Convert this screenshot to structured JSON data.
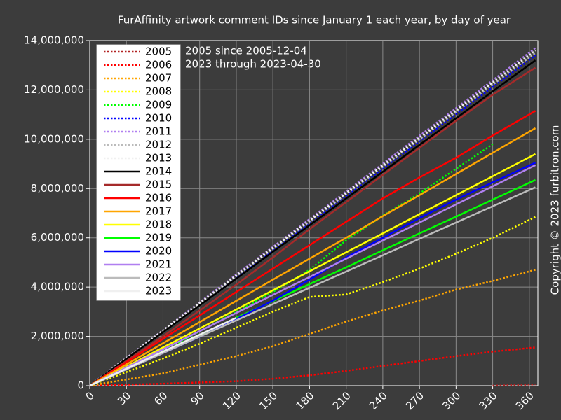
{
  "chart_data": {
    "type": "line",
    "title": "FurAffinity artwork comment IDs since January 1 each year, by day of year",
    "annotations": [
      "2005 since 2005-12-04",
      "2023 through 2023-04-30"
    ],
    "copyright": "Copyright © 2023 furbitron.com",
    "x": [
      0,
      30,
      60,
      90,
      120,
      150,
      180,
      210,
      240,
      270,
      300,
      330,
      365
    ],
    "xlim": [
      0,
      367
    ],
    "xticks": [
      0,
      30,
      60,
      90,
      120,
      150,
      180,
      210,
      240,
      270,
      300,
      330,
      360
    ],
    "ylim": [
      0,
      14000000
    ],
    "yticks": [
      0,
      {
        "value": 2000000,
        "label": "2,000,000"
      },
      {
        "value": 4000000,
        "label": "4,000,000"
      },
      {
        "value": 6000000,
        "label": "6,000,000"
      },
      {
        "value": 8000000,
        "label": "8,000,000"
      },
      {
        "value": 10000000,
        "label": "10,000,000"
      },
      {
        "value": 12000000,
        "label": "12,000,000"
      },
      {
        "value": 14000000,
        "label": "14,000,000"
      }
    ],
    "grid": true,
    "legend": "upper left",
    "series": [
      {
        "name": "2005",
        "color": "#b22222",
        "style": "dotted",
        "values": [
          null,
          null,
          null,
          null,
          null,
          null,
          null,
          null,
          null,
          null,
          null,
          0,
          50000
        ]
      },
      {
        "name": "2006",
        "color": "#ff0000",
        "style": "dotted",
        "values": [
          0,
          40000,
          80000,
          130000,
          180000,
          280000,
          420000,
          600000,
          800000,
          1000000,
          1200000,
          1380000,
          1550000
        ]
      },
      {
        "name": "2007",
        "color": "#ffa500",
        "style": "dotted",
        "values": [
          0,
          250000,
          500000,
          850000,
          1200000,
          1600000,
          2100000,
          2600000,
          3050000,
          3450000,
          3900000,
          4250000,
          4700000
        ]
      },
      {
        "name": "2008",
        "color": "#ffff00",
        "style": "dotted",
        "values": [
          0,
          550000,
          1100000,
          1700000,
          2350000,
          3000000,
          3600000,
          3700000,
          4200000,
          4750000,
          5350000,
          6000000,
          6850000
        ]
      },
      {
        "name": "2009",
        "color": "#00ff00",
        "style": "dotted",
        "values": [
          0,
          700000,
          1400000,
          2200000,
          3000000,
          3800000,
          4700000,
          5900000,
          6900000,
          7800000,
          8800000,
          9800000,
          null
        ]
      },
      {
        "name": "2010",
        "color": "#0000ff",
        "style": "dotted",
        "values": [
          0,
          1100000,
          2200000,
          3310000,
          4410000,
          5510000,
          6610000,
          7710000,
          8810000,
          9920000,
          11020000,
          12120000,
          13400000
        ]
      },
      {
        "name": "2011",
        "color": "#b07ff0",
        "style": "dotted",
        "values": [
          0,
          1130000,
          2250000,
          3380000,
          4510000,
          5630000,
          6760000,
          7880000,
          9010000,
          10140000,
          11260000,
          12390000,
          13700000
        ]
      },
      {
        "name": "2012",
        "color": "#bbbbbb",
        "style": "dotted",
        "values": [
          0,
          1110000,
          2220000,
          3330000,
          4440000,
          5550000,
          6660000,
          7770000,
          8880000,
          9990000,
          11100000,
          12210000,
          13500000
        ]
      },
      {
        "name": "2013",
        "color": "#f0f0f0",
        "style": "dotted",
        "values": [
          0,
          1120000,
          2240000,
          3350000,
          4470000,
          5590000,
          6710000,
          7820000,
          8940000,
          10060000,
          11180000,
          12300000,
          13600000
        ]
      },
      {
        "name": "2014",
        "color": "#000000",
        "style": "solid",
        "values": [
          0,
          1090000,
          2170000,
          3260000,
          4340000,
          5430000,
          6510000,
          7600000,
          8680000,
          9770000,
          10850000,
          11940000,
          13200000
        ]
      },
      {
        "name": "2015",
        "color": "#a52a2a",
        "style": "solid",
        "values": [
          0,
          1000000,
          2000000,
          3050000,
          4100000,
          5200000,
          6350000,
          7450000,
          8550000,
          9650000,
          10750000,
          11800000,
          12900000
        ]
      },
      {
        "name": "2016",
        "color": "#ff0000",
        "style": "solid",
        "values": [
          0,
          950000,
          1900000,
          2850000,
          3800000,
          4750000,
          5700000,
          6650000,
          7600000,
          8450000,
          9250000,
          10150000,
          11150000
        ]
      },
      {
        "name": "2017",
        "color": "#ffa500",
        "style": "solid",
        "values": [
          0,
          860000,
          1720000,
          2580000,
          3440000,
          4300000,
          5150000,
          6000000,
          6880000,
          7730000,
          8590000,
          9450000,
          10450000
        ]
      },
      {
        "name": "2018",
        "color": "#ffff00",
        "style": "solid",
        "values": [
          0,
          770000,
          1550000,
          2320000,
          3090000,
          3870000,
          4640000,
          5410000,
          6180000,
          6960000,
          7730000,
          8500000,
          9400000
        ]
      },
      {
        "name": "2019",
        "color": "#00ff00",
        "style": "solid",
        "values": [
          0,
          690000,
          1370000,
          2060000,
          2750000,
          3430000,
          4120000,
          4800000,
          5490000,
          6180000,
          6860000,
          7550000,
          8350000
        ]
      },
      {
        "name": "2020",
        "color": "#0000ff",
        "style": "solid",
        "values": [
          0,
          660000,
          1320000,
          1980000,
          2700000,
          3450000,
          4300000,
          5200000,
          6000000,
          6800000,
          7550000,
          8250000,
          9050000
        ]
      },
      {
        "name": "2021",
        "color": "#b07ff0",
        "style": "solid",
        "values": [
          0,
          740000,
          1470000,
          2210000,
          2950000,
          3680000,
          4410000,
          5150000,
          5890000,
          6620000,
          7360000,
          8090000,
          8950000
        ]
      },
      {
        "name": "2022",
        "color": "#bbbbbb",
        "style": "solid",
        "values": [
          0,
          660000,
          1320000,
          1990000,
          2650000,
          3310000,
          3970000,
          4630000,
          5290000,
          5960000,
          6620000,
          7280000,
          8050000
        ]
      },
      {
        "name": "2023",
        "color": "#f0f0f0",
        "style": "solid",
        "values": [
          0,
          690000,
          1380000,
          2070000,
          2750000,
          null,
          null,
          null,
          null,
          null,
          null,
          null,
          null
        ]
      }
    ]
  }
}
